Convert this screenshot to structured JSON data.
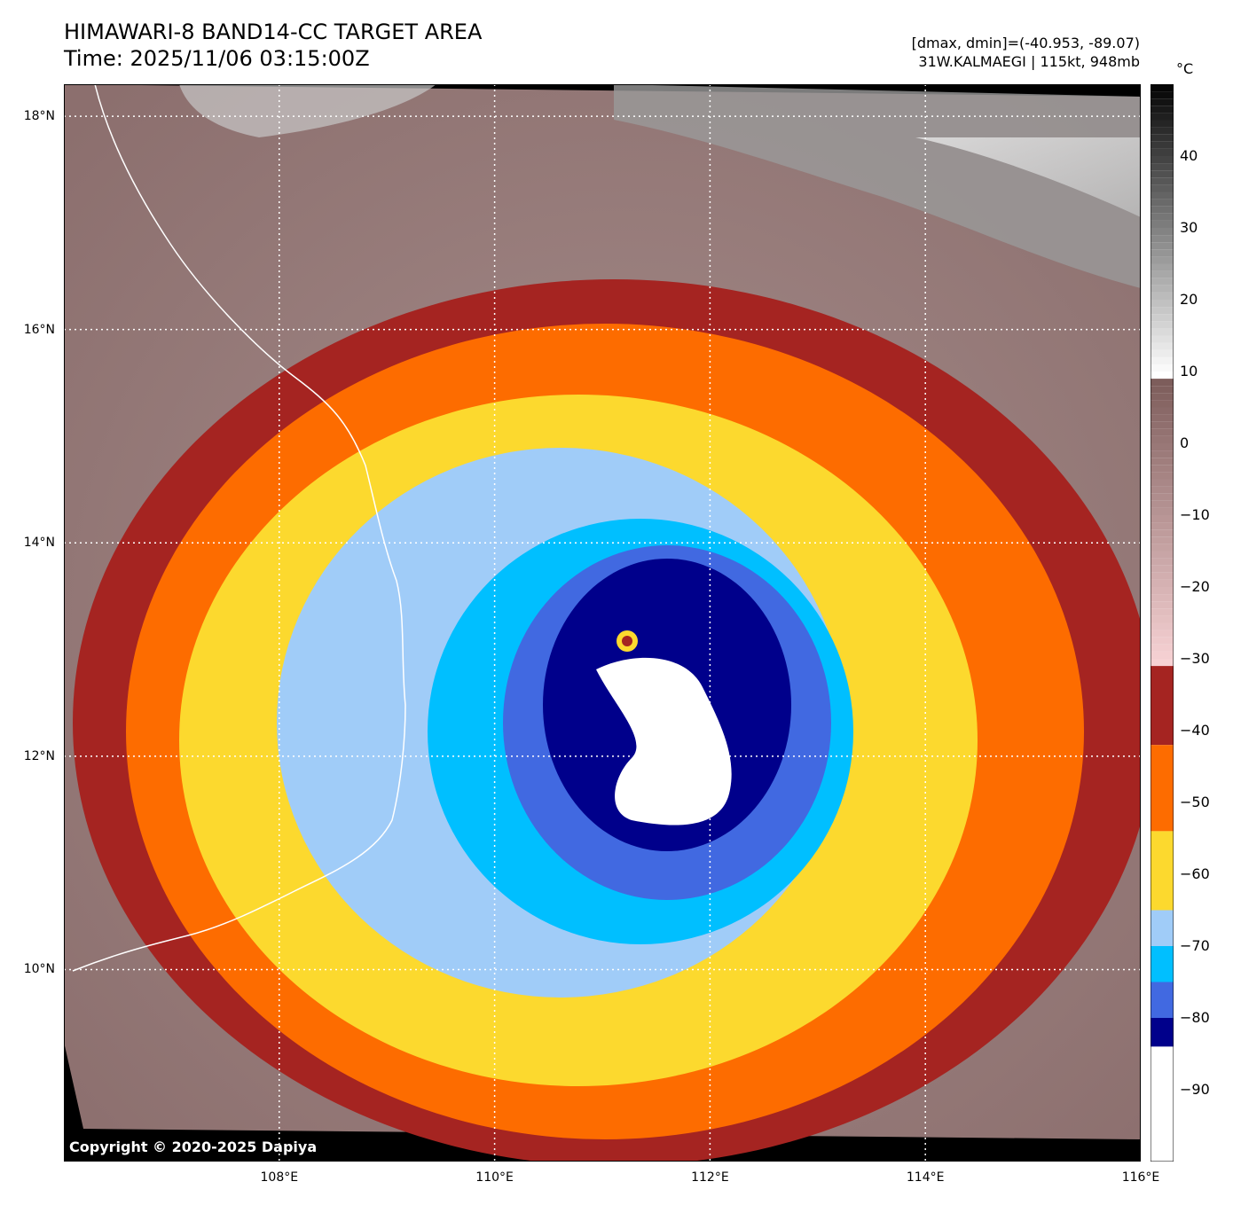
{
  "header": {
    "title_line1": "HIMAWARI-8 BAND14-CC TARGET AREA",
    "title_line2": "Time: 2025/11/06 03:15:00Z",
    "info_line1": "[dmax, dmin]=(-40.953, -89.07)",
    "info_line2": "31W.KALMAEGI | 115kt, 948mb"
  },
  "map": {
    "lat_labels": [
      "18°N",
      "16°N",
      "14°N",
      "12°N",
      "10°N"
    ],
    "lat_values": [
      18,
      16,
      14,
      12,
      10
    ],
    "lon_labels": [
      "108°E",
      "110°E",
      "112°E",
      "114°E",
      "116°E"
    ],
    "lon_values": [
      108,
      110,
      112,
      114,
      116
    ],
    "extent": {
      "lon_min": 106.0,
      "lon_max": 116.0,
      "lat_min": 8.2,
      "lat_max": 18.3
    },
    "storm_center": {
      "lon": 111.4,
      "lat": 13.1
    },
    "copyright": "Copyright © 2020-2025 Dapiya"
  },
  "colorbar": {
    "unit": "°C",
    "tick_labels": [
      "40",
      "30",
      "20",
      "10",
      "0",
      "−10",
      "−20",
      "−30",
      "−40",
      "−50",
      "−60",
      "−70",
      "−80",
      "−90"
    ],
    "tick_values": [
      40,
      30,
      20,
      10,
      0,
      -10,
      -20,
      -30,
      -40,
      -50,
      -60,
      -70,
      -80,
      -90
    ],
    "range": [
      -100,
      50
    ],
    "colors": {
      "below_-84": "#ffffff",
      "-84_to_-80": "#00008b",
      "-80_to_-75": "#4169e1",
      "-75_to_-70": "#00bfff",
      "-70_to_-65": "#a0ccf8",
      "-65_to_-54": "#fcd92e",
      "-54_to_-42": "#fd6c00",
      "-42_to_-31": "#a52421",
      "-31_to_9": "gradient #f7d2d4 to #7a5a58",
      "9_to_50": "gradient #ffffff to #000000"
    }
  }
}
